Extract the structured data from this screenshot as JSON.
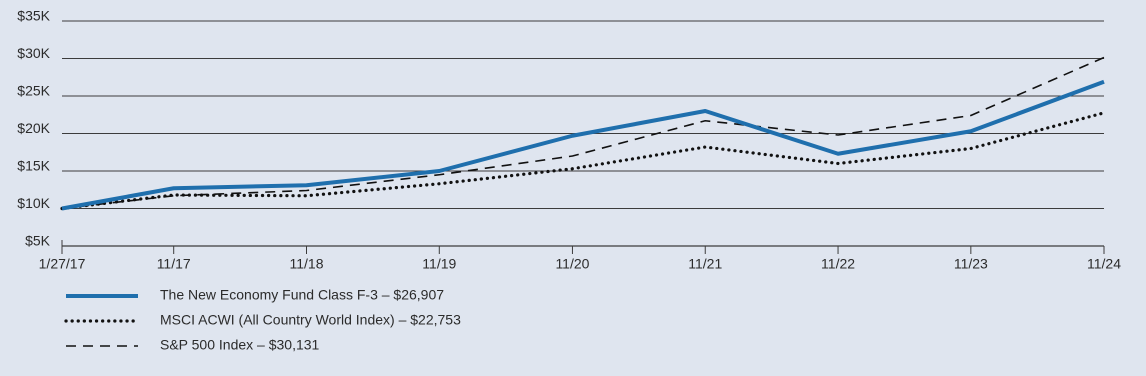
{
  "chart_data": {
    "type": "line",
    "x": [
      "1/27/17",
      "11/17",
      "11/18",
      "11/19",
      "11/20",
      "11/21",
      "11/22",
      "11/23",
      "11/24"
    ],
    "series": [
      {
        "name": "The New Economy Fund Class F-3 – $26,907",
        "color": "#1f6fad",
        "style": "solid",
        "values": [
          10000,
          12700,
          13100,
          15000,
          19700,
          23000,
          17300,
          20300,
          26907
        ]
      },
      {
        "name": "MSCI ACWI (All Country World Index) – $22,753",
        "color": "#111111",
        "style": "dotted",
        "values": [
          10000,
          11800,
          11700,
          13300,
          15300,
          18200,
          16000,
          18000,
          22753
        ]
      },
      {
        "name": "S&P 500 Index – $30,131",
        "color": "#111111",
        "style": "dashed",
        "values": [
          10000,
          11700,
          12400,
          14500,
          17000,
          21700,
          19800,
          22400,
          30131
        ]
      }
    ],
    "ylim": [
      5000,
      35000
    ],
    "yticks": [
      {
        "value": 5000,
        "label": "$5K"
      },
      {
        "value": 10000,
        "label": "$10K"
      },
      {
        "value": 15000,
        "label": "$15K"
      },
      {
        "value": 20000,
        "label": "$20K"
      },
      {
        "value": 25000,
        "label": "$25K"
      },
      {
        "value": 30000,
        "label": "$30K"
      },
      {
        "value": 35000,
        "label": "$35K"
      }
    ],
    "grid": true
  }
}
